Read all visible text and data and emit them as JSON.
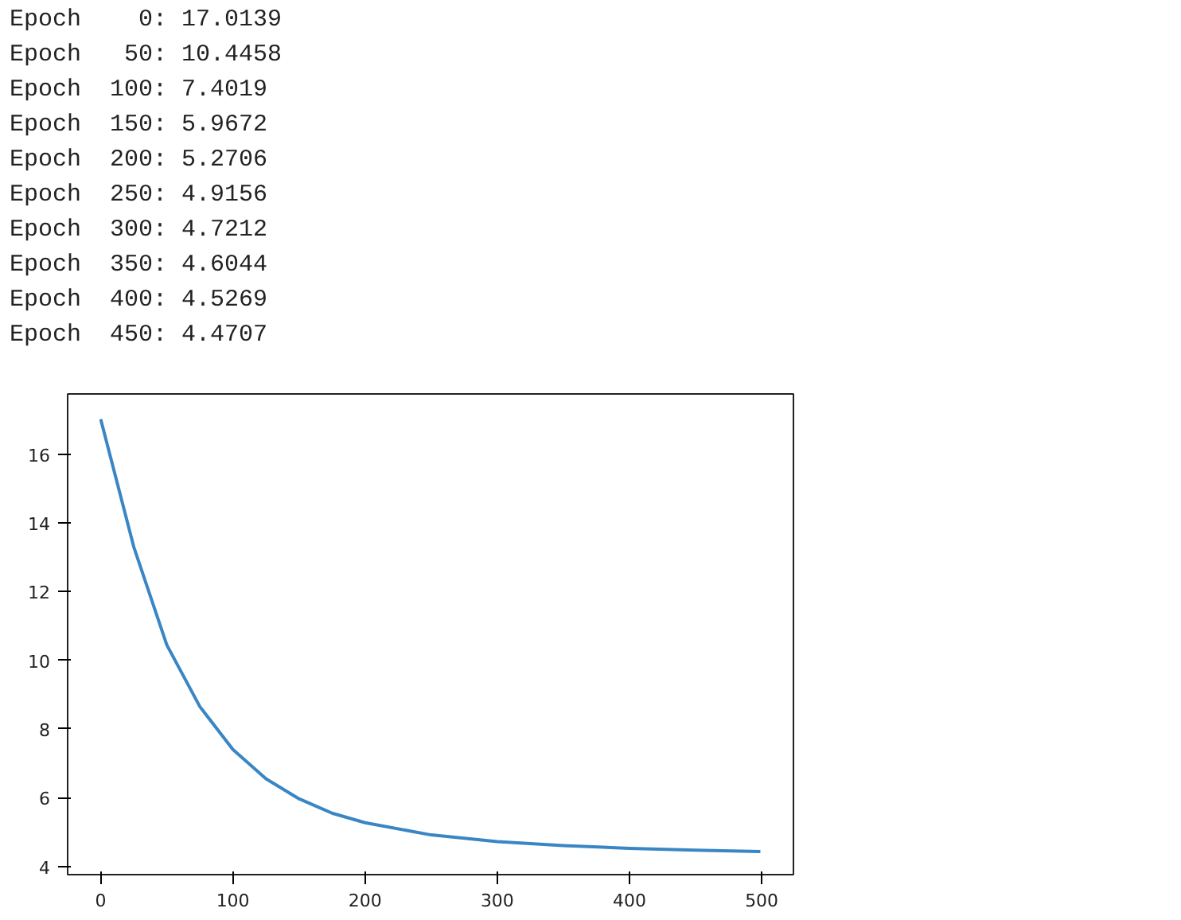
{
  "chart_data": {
    "type": "line",
    "annotations": [
      "Epoch    0: 17.0139",
      "Epoch   50: 10.4458",
      "Epoch  100: 7.4019",
      "Epoch  150: 5.9672",
      "Epoch  200: 5.2706",
      "Epoch  250: 4.9156",
      "Epoch  300: 4.7212",
      "Epoch  350: 4.6044",
      "Epoch  400: 4.5269",
      "Epoch  450: 4.4707"
    ],
    "x": [
      0,
      25,
      50,
      75,
      100,
      125,
      150,
      175,
      200,
      250,
      300,
      350,
      400,
      450,
      499
    ],
    "series": [
      {
        "color": "#3a86c4",
        "values": [
          17.0139,
          13.3,
          10.4458,
          8.65,
          7.4019,
          6.55,
          5.9672,
          5.55,
          5.2706,
          4.9156,
          4.7212,
          4.6044,
          4.5269,
          4.4707,
          4.43
        ]
      }
    ],
    "xlim": [
      -25,
      524
    ],
    "ylim": [
      3.76,
      17.75
    ],
    "xticks": [
      0,
      100,
      200,
      300,
      400,
      500
    ],
    "yticks": [
      4,
      6,
      8,
      10,
      12,
      14,
      16
    ],
    "grid": false,
    "line_style": "solid"
  }
}
